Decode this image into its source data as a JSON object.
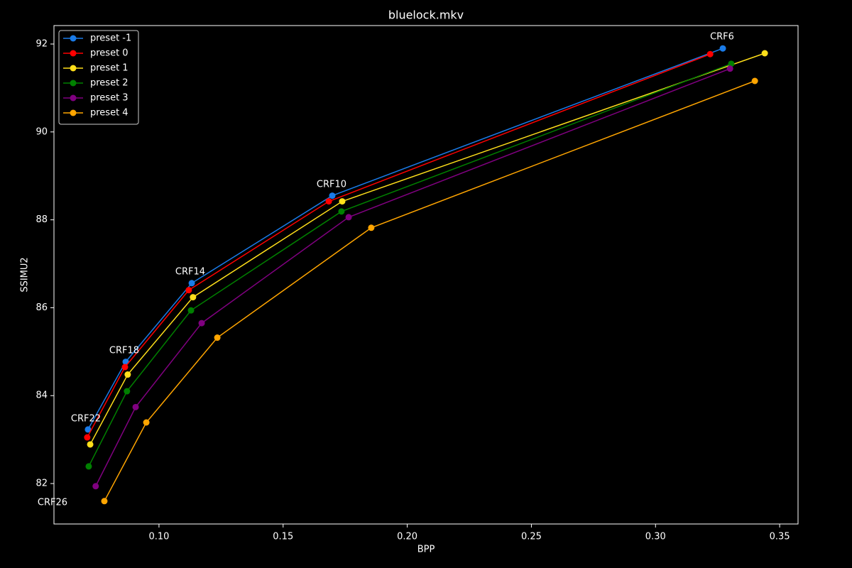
{
  "chart_data": {
    "type": "line",
    "title": "bluelock.mkv",
    "x_label": "BPP",
    "y_label": "SSIMU2",
    "xlim": [
      0.0577,
      0.3574
    ],
    "ylim": [
      81.08,
      92.42
    ],
    "xticks": [
      {
        "value": 0.1,
        "label": "0.10"
      },
      {
        "value": 0.15,
        "label": "0.15"
      },
      {
        "value": 0.2,
        "label": "0.20"
      },
      {
        "value": 0.25,
        "label": "0.25"
      },
      {
        "value": 0.3,
        "label": "0.30"
      },
      {
        "value": 0.35,
        "label": "0.35"
      }
    ],
    "yticks": [
      82,
      84,
      86,
      88,
      90,
      92
    ],
    "grid": false,
    "legend": "upper left",
    "series": [
      {
        "name": "preset -1",
        "color": "#1a7be8",
        "x": [
          0.0714,
          0.0866,
          0.1132,
          0.1698,
          0.3271
        ],
        "values": [
          83.23,
          84.77,
          86.56,
          88.55,
          91.9
        ]
      },
      {
        "name": "preset 0",
        "color": "#ff0000",
        "x": [
          0.0711,
          0.0863,
          0.112,
          0.1684,
          0.322
        ],
        "values": [
          83.05,
          84.65,
          86.4,
          88.42,
          91.77
        ]
      },
      {
        "name": "preset 1",
        "color": "#ffdf1a",
        "x": [
          0.0723,
          0.0874,
          0.1137,
          0.1738,
          0.344
        ],
        "values": [
          82.89,
          84.48,
          86.24,
          88.42,
          91.79
        ]
      },
      {
        "name": "preset 2",
        "color": "#008000",
        "x": [
          0.0717,
          0.0871,
          0.1129,
          0.1735,
          0.3305
        ],
        "values": [
          82.39,
          84.1,
          85.94,
          88.19,
          91.55
        ]
      },
      {
        "name": "preset 3",
        "color": "#800080",
        "x": [
          0.0745,
          0.0906,
          0.1172,
          0.1764,
          0.33
        ],
        "values": [
          81.94,
          83.74,
          85.65,
          88.06,
          91.44
        ]
      },
      {
        "name": "preset 4",
        "color": "#ffa500",
        "x": [
          0.078,
          0.0949,
          0.1235,
          0.1855,
          0.34
        ],
        "values": [
          81.6,
          83.39,
          85.32,
          87.82,
          91.16
        ]
      }
    ],
    "annotations": [
      "CRF6",
      "CRF10",
      "CRF14",
      "CRF18",
      "CRF22",
      "CRF26"
    ]
  }
}
